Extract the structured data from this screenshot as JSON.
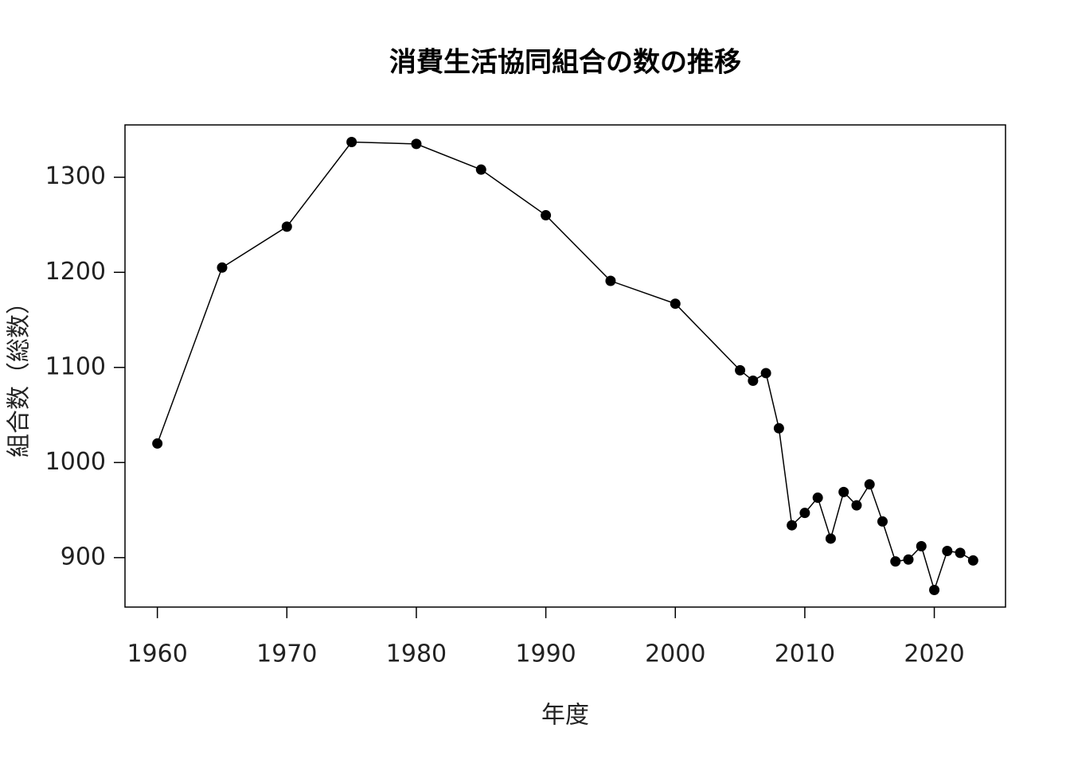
{
  "chart_data": {
    "type": "line",
    "title": "消費生活協同組合の数の推移",
    "x_label": "年度",
    "y_label": "組合数（総数）",
    "x": [
      1960,
      1965,
      1970,
      1975,
      1980,
      1985,
      1990,
      1995,
      2000,
      2005,
      2006,
      2007,
      2008,
      2009,
      2010,
      2011,
      2012,
      2013,
      2014,
      2015,
      2016,
      2017,
      2018,
      2019,
      2020,
      2021,
      2022,
      2023
    ],
    "series": [
      {
        "color": "#000000",
        "values": [
          1020,
          1205,
          1248,
          1337,
          1335,
          1308,
          1260,
          1191,
          1167,
          1097,
          1086,
          1094,
          1036,
          934,
          947,
          963,
          920,
          969,
          955,
          977,
          938,
          896,
          898,
          912,
          866,
          907,
          905,
          897
        ]
      }
    ],
    "xlim": [
      1957.5,
      2025.5
    ],
    "ylim": [
      848,
      1355
    ],
    "xticks": [
      1960,
      1970,
      1980,
      1990,
      2000,
      2010,
      2020
    ],
    "yticks": [
      900,
      1000,
      1100,
      1200,
      1300
    ]
  }
}
